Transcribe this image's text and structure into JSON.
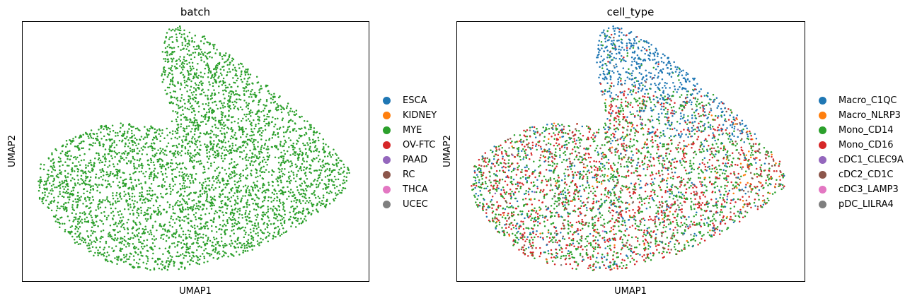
{
  "chart_data": [
    {
      "type": "scatter",
      "title": "batch",
      "xlabel": "UMAP1",
      "ylabel": "UMAP2",
      "grid": false,
      "ticks": false,
      "legend": {
        "placement": "right",
        "entries": [
          {
            "name": "ESCA",
            "color": "#1f77b4"
          },
          {
            "name": "KIDNEY",
            "color": "#ff7f0e"
          },
          {
            "name": "MYE",
            "color": "#2ca02c"
          },
          {
            "name": "OV-FTC",
            "color": "#d62728"
          },
          {
            "name": "PAAD",
            "color": "#9467bd"
          },
          {
            "name": "RC",
            "color": "#8c564b"
          },
          {
            "name": "THCA",
            "color": "#e377c2"
          },
          {
            "name": "UCEC",
            "color": "#7f7f7f"
          }
        ]
      },
      "point_distribution": [
        {
          "category": "MYE",
          "share": 1.0
        }
      ]
    },
    {
      "type": "scatter",
      "title": "cell_type",
      "xlabel": "UMAP1",
      "ylabel": "UMAP2",
      "grid": false,
      "ticks": false,
      "legend": {
        "placement": "right",
        "entries": [
          {
            "name": "Macro_C1QC",
            "color": "#1f77b4"
          },
          {
            "name": "Macro_NLRP3",
            "color": "#ff7f0e"
          },
          {
            "name": "Mono_CD14",
            "color": "#2ca02c"
          },
          {
            "name": "Mono_CD16",
            "color": "#d62728"
          },
          {
            "name": "cDC1_CLEC9A",
            "color": "#9467bd"
          },
          {
            "name": "cDC2_CD1C",
            "color": "#8c564b"
          },
          {
            "name": "cDC3_LAMP3",
            "color": "#e377c2"
          },
          {
            "name": "pDC_LILRA4",
            "color": "#7f7f7f"
          }
        ]
      },
      "point_distribution": [
        {
          "category": "Mono_CD14",
          "share": 0.47
        },
        {
          "category": "Mono_CD16",
          "share": 0.33
        },
        {
          "category": "Macro_C1QC",
          "share": 0.12
        },
        {
          "category": "cDC2_CD1C",
          "share": 0.04
        },
        {
          "category": "Macro_NLRP3",
          "share": 0.02
        },
        {
          "category": "pDC_LILRA4",
          "share": 0.015
        },
        {
          "category": "cDC1_CLEC9A",
          "share": 0.003
        },
        {
          "category": "cDC3_LAMP3",
          "share": 0.002
        }
      ]
    }
  ]
}
